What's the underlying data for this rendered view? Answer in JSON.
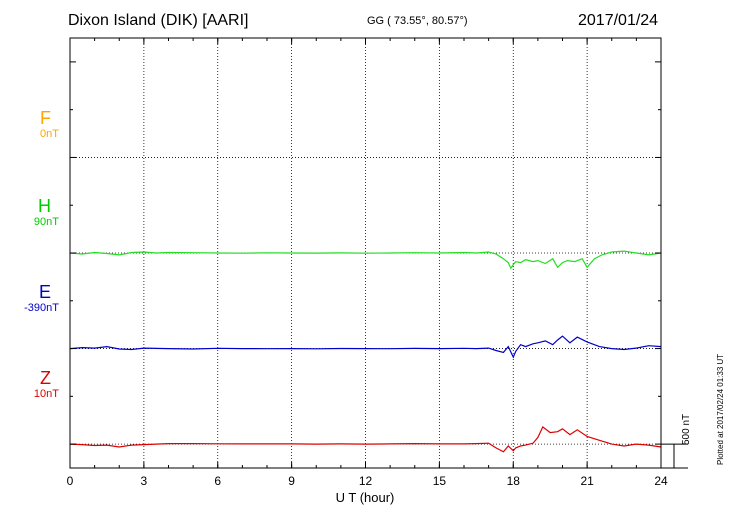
{
  "header": {
    "station": "Dixon Island (DIK)  [AARI]",
    "coordinates": "GG ( 73.55°,  80.57°)",
    "date": "2017/01/24"
  },
  "components": [
    {
      "letter": "F",
      "baseline": "0nT",
      "color": "#ffa500"
    },
    {
      "letter": "H",
      "baseline": "90nT",
      "color": "#00dd00"
    },
    {
      "letter": "E",
      "baseline": "-390nT",
      "color": "#0000cc"
    },
    {
      "letter": "Z",
      "baseline": "10nT",
      "color": "#dd0000"
    }
  ],
  "plotted_note": "Plotted at 2017/02/24 01:33 UT",
  "scale_bar": "500 nT",
  "chart_data": {
    "type": "line",
    "xlabel": "U T (hour)",
    "xlim": [
      0,
      24
    ],
    "x_ticks": [
      "0",
      "3",
      "6",
      "9",
      "12",
      "15",
      "18",
      "21",
      "24"
    ],
    "ylim": [
      -2250,
      2250
    ],
    "y_unit": "nT offset from component baseline",
    "grid": true,
    "series": [
      {
        "name": "F",
        "color": "#ffa500",
        "baseline_offset": 1000,
        "x": [],
        "values": []
      },
      {
        "name": "H",
        "color": "#22dd22",
        "baseline_offset": 0,
        "x": [
          0,
          0.5,
          1,
          1.5,
          2,
          2.5,
          3,
          3.5,
          4,
          5,
          6,
          7,
          8,
          9,
          10,
          11,
          12,
          13,
          14,
          15,
          16,
          16.5,
          17,
          17.3,
          17.6,
          17.8,
          17.9,
          18,
          18.1,
          18.3,
          18.5,
          18.8,
          19,
          19.3,
          19.6,
          19.8,
          20,
          20.2,
          20.5,
          20.8,
          21,
          21.3,
          21.6,
          22,
          22.5,
          23,
          23.5,
          24
        ],
        "values": [
          0,
          -10,
          5,
          -5,
          -20,
          5,
          10,
          0,
          5,
          3,
          0,
          -2,
          2,
          0,
          -1,
          1,
          -2,
          0,
          3,
          0,
          5,
          0,
          10,
          -10,
          -60,
          -100,
          -160,
          -120,
          -90,
          -100,
          -70,
          -90,
          -80,
          -110,
          -60,
          -150,
          -100,
          -80,
          -90,
          -60,
          -150,
          -60,
          -20,
          10,
          20,
          0,
          -20,
          0
        ]
      },
      {
        "name": "E",
        "color": "#0000cc",
        "baseline_offset": -1000,
        "x": [
          0,
          0.5,
          1,
          1.5,
          2,
          2.5,
          3,
          4,
          5,
          6,
          7,
          8,
          9,
          10,
          11,
          12,
          13,
          14,
          15,
          16,
          16.5,
          17,
          17.3,
          17.6,
          17.8,
          18,
          18.1,
          18.3,
          18.5,
          18.8,
          19,
          19.3,
          19.6,
          19.8,
          20,
          20.3,
          20.6,
          21,
          21.5,
          22,
          22.5,
          23,
          23.5,
          24
        ],
        "values": [
          0,
          10,
          5,
          20,
          -5,
          -10,
          5,
          0,
          -5,
          3,
          0,
          -2,
          0,
          -3,
          1,
          0,
          -2,
          2,
          0,
          3,
          0,
          5,
          -20,
          -40,
          20,
          -90,
          -30,
          40,
          20,
          50,
          60,
          80,
          40,
          90,
          130,
          60,
          120,
          70,
          20,
          0,
          -10,
          5,
          30,
          20
        ]
      },
      {
        "name": "Z",
        "color": "#dd0000",
        "baseline_offset": -2000,
        "x": [
          0,
          0.5,
          1,
          1.5,
          2,
          2.5,
          3,
          4,
          5,
          6,
          7,
          8,
          9,
          10,
          11,
          12,
          13,
          14,
          15,
          16,
          16.5,
          17,
          17.3,
          17.6,
          17.8,
          18,
          18.1,
          18.3,
          18.5,
          18.8,
          19,
          19.2,
          19.5,
          19.8,
          20,
          20.3,
          20.6,
          21,
          21.5,
          22,
          22.5,
          23,
          23.5,
          24
        ],
        "values": [
          0,
          -5,
          -15,
          -10,
          -30,
          -10,
          -5,
          5,
          5,
          3,
          2,
          2,
          2,
          0,
          2,
          0,
          2,
          5,
          2,
          2,
          5,
          10,
          -40,
          -80,
          -20,
          -70,
          -40,
          -20,
          -10,
          10,
          70,
          180,
          120,
          130,
          160,
          100,
          150,
          80,
          40,
          0,
          -20,
          0,
          -10,
          -30
        ]
      }
    ]
  }
}
